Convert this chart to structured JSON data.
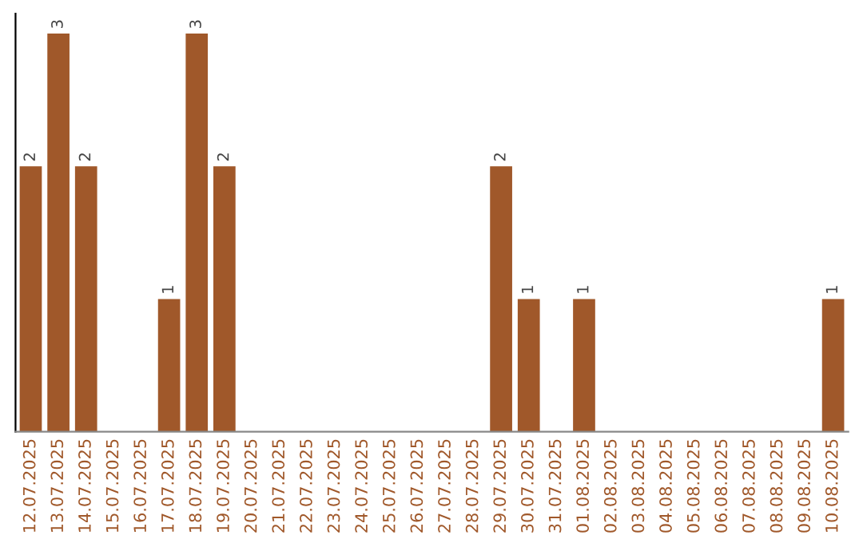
{
  "chart_data": {
    "type": "bar",
    "categories": [
      "12.07.2025",
      "13.07.2025",
      "14.07.2025",
      "15.07.2025",
      "16.07.2025",
      "17.07.2025",
      "18.07.2025",
      "19.07.2025",
      "20.07.2025",
      "21.07.2025",
      "22.07.2025",
      "23.07.2025",
      "24.07.2025",
      "25.07.2025",
      "26.07.2025",
      "27.07.2025",
      "28.07.2025",
      "29.07.2025",
      "30.07.2025",
      "31.07.2025",
      "01.08.2025",
      "02.08.2025",
      "03.08.2025",
      "04.08.2025",
      "05.08.2025",
      "06.08.2025",
      "07.08.2025",
      "08.08.2025",
      "09.08.2025",
      "10.08.2025"
    ],
    "values": [
      2,
      3,
      2,
      0,
      0,
      1,
      3,
      2,
      0,
      0,
      0,
      0,
      0,
      0,
      0,
      0,
      0,
      2,
      1,
      0,
      1,
      0,
      0,
      0,
      0,
      0,
      0,
      0,
      0,
      1
    ],
    "value_labels": [
      "2",
      "3",
      "2",
      null,
      null,
      "1",
      "3",
      "2",
      null,
      null,
      null,
      null,
      null,
      null,
      null,
      null,
      null,
      "2",
      "1",
      null,
      "1",
      null,
      null,
      null,
      null,
      null,
      null,
      null,
      null,
      "1"
    ],
    "color": "#a0582a",
    "grid": false,
    "legend": false
  }
}
